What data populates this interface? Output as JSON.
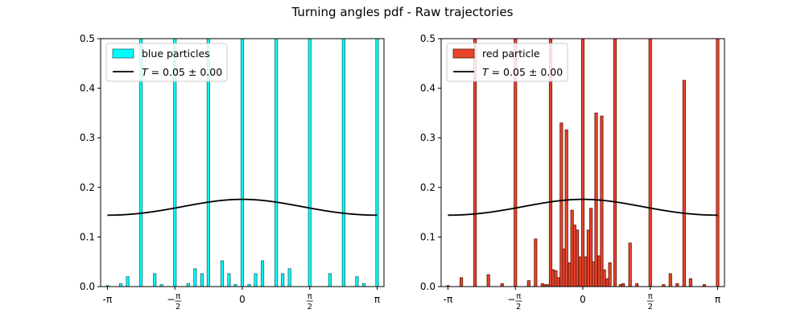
{
  "title": "Turning angles pdf - Raw trajectories",
  "chart_data": [
    {
      "type": "bar",
      "panel": "left",
      "title": "",
      "xlabel": "",
      "ylabel": "",
      "xlim": [
        -3.3,
        3.3
      ],
      "ylim": [
        0,
        0.5
      ],
      "x_ticks": [
        {
          "value": -3.14159,
          "label": "-π"
        },
        {
          "value": -1.5708,
          "label": "−π/2"
        },
        {
          "value": 0,
          "label": "0"
        },
        {
          "value": 1.5708,
          "label": "π/2"
        },
        {
          "value": 3.14159,
          "label": "π"
        }
      ],
      "y_ticks": [
        0.0,
        0.1,
        0.2,
        0.3,
        0.4,
        0.5
      ],
      "y_tick_labels": [
        "0.0",
        "0.1",
        "0.2",
        "0.3",
        "0.4",
        "0.5"
      ],
      "legend_position": "upper-left",
      "bar_color": "#00ffff",
      "bar_edge": "#1a6a6a",
      "bin_width": 0.0628,
      "bins": [
        [
          -3.14,
          0.002
        ],
        [
          -2.83,
          0.006
        ],
        [
          -2.67,
          0.02
        ],
        [
          -2.36,
          0.5
        ],
        [
          -2.04,
          0.026
        ],
        [
          -1.88,
          0.004
        ],
        [
          -1.57,
          0.5
        ],
        [
          -1.26,
          0.006
        ],
        [
          -1.1,
          0.036
        ],
        [
          -0.94,
          0.026
        ],
        [
          -0.79,
          0.5
        ],
        [
          -0.47,
          0.052
        ],
        [
          -0.31,
          0.026
        ],
        [
          -0.16,
          0.004
        ],
        [
          0.0,
          0.5
        ],
        [
          0.16,
          0.004
        ],
        [
          0.31,
          0.026
        ],
        [
          0.47,
          0.052
        ],
        [
          0.79,
          0.5
        ],
        [
          0.94,
          0.026
        ],
        [
          1.1,
          0.036
        ],
        [
          1.57,
          0.5
        ],
        [
          2.04,
          0.026
        ],
        [
          2.36,
          0.5
        ],
        [
          2.67,
          0.02
        ],
        [
          2.83,
          0.006
        ],
        [
          3.14,
          0.5
        ]
      ],
      "curve": {
        "name": "T = 0.05 ± 0.00",
        "color": "#000000",
        "T": 0.05
      },
      "series": [
        {
          "name": "blue particles",
          "color": "#00ffff"
        },
        {
          "name": "T = 0.05 ± 0.00",
          "color": "#000000"
        }
      ]
    },
    {
      "type": "bar",
      "panel": "right",
      "title": "",
      "xlabel": "",
      "ylabel": "",
      "xlim": [
        -3.3,
        3.3
      ],
      "ylim": [
        0,
        0.5
      ],
      "x_ticks": [
        {
          "value": -3.14159,
          "label": "-π"
        },
        {
          "value": -1.5708,
          "label": "−π/2"
        },
        {
          "value": 0,
          "label": "0"
        },
        {
          "value": 1.5708,
          "label": "π/2"
        },
        {
          "value": 3.14159,
          "label": "π"
        }
      ],
      "y_ticks": [
        0.0,
        0.1,
        0.2,
        0.3,
        0.4,
        0.5
      ],
      "y_tick_labels": [
        "0.0",
        "0.1",
        "0.2",
        "0.3",
        "0.4",
        "0.5"
      ],
      "legend_position": "upper-left",
      "bar_color": "#e8442a",
      "bar_edge": "#5a1a10",
      "bin_width": 0.0628,
      "bins": [
        [
          -3.14,
          0.002
        ],
        [
          -2.83,
          0.018
        ],
        [
          -2.51,
          0.5
        ],
        [
          -2.2,
          0.024
        ],
        [
          -1.88,
          0.006
        ],
        [
          -1.57,
          0.5
        ],
        [
          -1.26,
          0.012
        ],
        [
          -1.1,
          0.096
        ],
        [
          -0.94,
          0.006
        ],
        [
          -0.88,
          0.004
        ],
        [
          -0.82,
          0.004
        ],
        [
          -0.75,
          0.5
        ],
        [
          -0.69,
          0.034
        ],
        [
          -0.63,
          0.032
        ],
        [
          -0.57,
          0.018
        ],
        [
          -0.5,
          0.33
        ],
        [
          -0.44,
          0.076
        ],
        [
          -0.38,
          0.316
        ],
        [
          -0.31,
          0.048
        ],
        [
          -0.25,
          0.154
        ],
        [
          -0.19,
          0.124
        ],
        [
          -0.13,
          0.114
        ],
        [
          -0.06,
          0.06
        ],
        [
          0.0,
          0.5
        ],
        [
          0.06,
          0.06
        ],
        [
          0.13,
          0.114
        ],
        [
          0.19,
          0.158
        ],
        [
          0.25,
          0.05
        ],
        [
          0.31,
          0.35
        ],
        [
          0.38,
          0.062
        ],
        [
          0.44,
          0.344
        ],
        [
          0.5,
          0.034
        ],
        [
          0.57,
          0.016
        ],
        [
          0.63,
          0.048
        ],
        [
          0.75,
          0.5
        ],
        [
          0.88,
          0.004
        ],
        [
          0.94,
          0.006
        ],
        [
          1.1,
          0.088
        ],
        [
          1.26,
          0.006
        ],
        [
          1.57,
          0.5
        ],
        [
          1.88,
          0.004
        ],
        [
          2.04,
          0.026
        ],
        [
          2.2,
          0.006
        ],
        [
          2.36,
          0.416
        ],
        [
          2.51,
          0.016
        ],
        [
          2.83,
          0.004
        ],
        [
          3.14,
          0.5
        ]
      ],
      "curve": {
        "name": "T = 0.05 ± 0.00",
        "color": "#000000",
        "T": 0.05
      },
      "series": [
        {
          "name": "red particle",
          "color": "#e8442a"
        },
        {
          "name": "T = 0.05 ± 0.00",
          "color": "#000000"
        }
      ]
    }
  ]
}
